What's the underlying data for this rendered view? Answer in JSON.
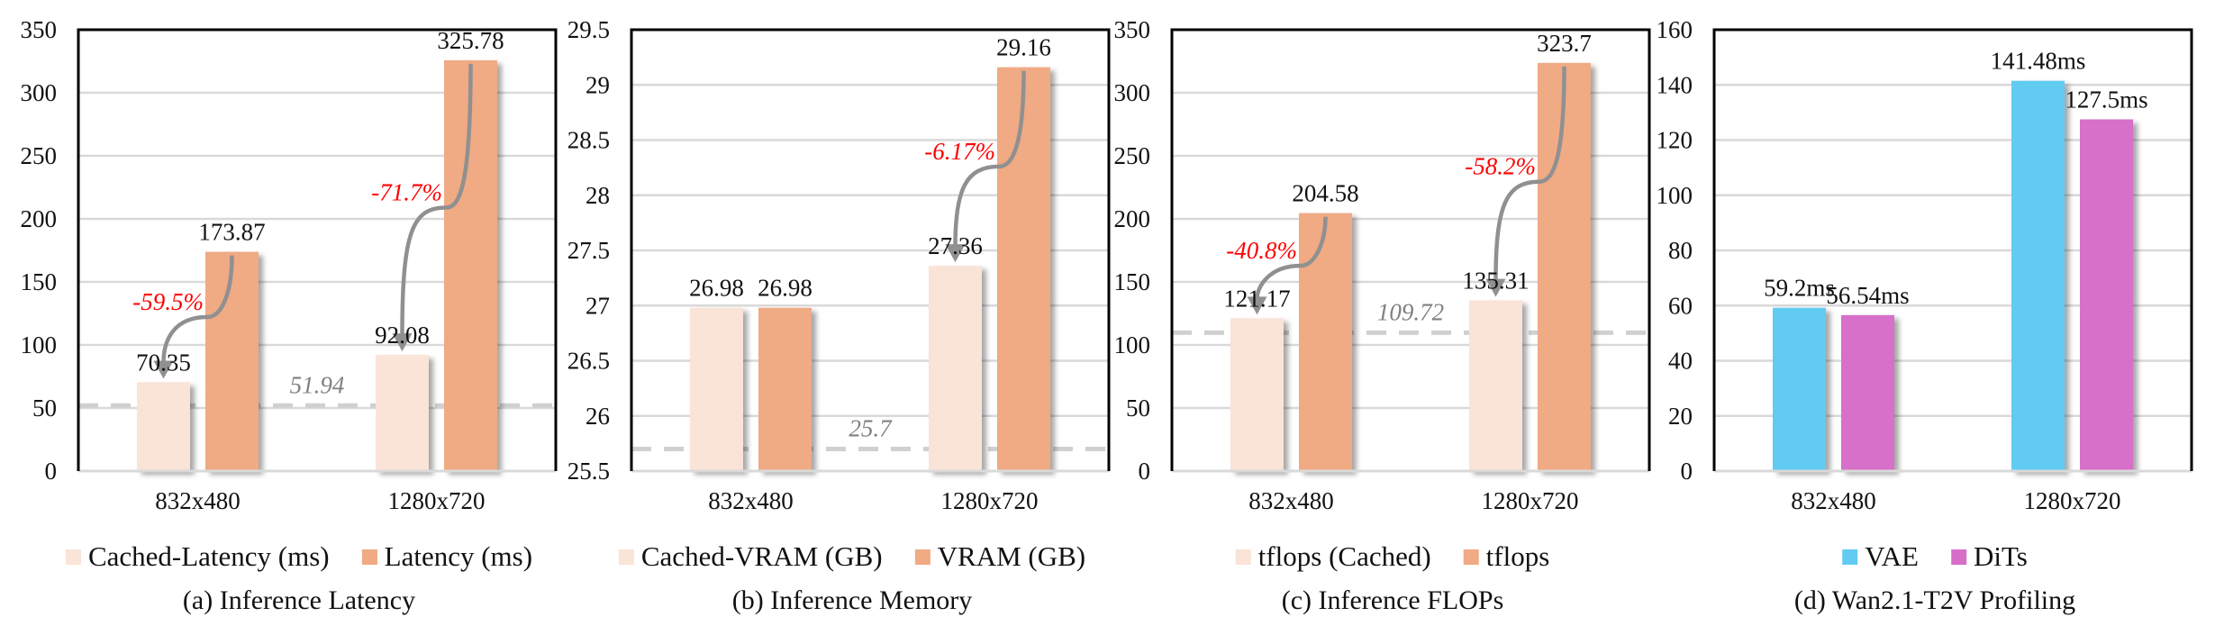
{
  "chart_data": [
    {
      "type": "bar",
      "title": "(a) Inference Latency",
      "categories": [
        "832x480",
        "1280x720"
      ],
      "ylim": [
        0,
        350
      ],
      "ystep": 50,
      "yticks": [
        "0",
        "50",
        "100",
        "150",
        "200",
        "250",
        "300",
        "350"
      ],
      "series": [
        {
          "name": "Cached-Latency (ms)",
          "color": "#FAE3D7",
          "values": [
            70.35,
            92.08
          ],
          "labels": [
            "70.35",
            "92.08"
          ]
        },
        {
          "name": "Latency (ms)",
          "color": "#F0AA84",
          "values": [
            173.87,
            325.78
          ],
          "labels": [
            "173.87",
            "325.78"
          ]
        }
      ],
      "reference_line": {
        "value": 51.94,
        "label": "51.94"
      },
      "annotations": [
        {
          "category": 0,
          "text": "-59.5%"
        },
        {
          "category": 1,
          "text": "-71.7%"
        }
      ],
      "legend": "bottom",
      "grid": true
    },
    {
      "type": "bar",
      "title": "(b) Inference Memory",
      "categories": [
        "832x480",
        "1280x720"
      ],
      "ylim": [
        25.5,
        29.5
      ],
      "ystep": 0.5,
      "yticks": [
        "25.5",
        "26",
        "26.5",
        "27",
        "27.5",
        "28",
        "28.5",
        "29",
        "29.5"
      ],
      "series": [
        {
          "name": "Cached-VRAM (GB)",
          "color": "#FAE3D7",
          "values": [
            26.98,
            27.36
          ],
          "labels": [
            "26.98",
            "27.36"
          ]
        },
        {
          "name": "VRAM (GB)",
          "color": "#F0AA84",
          "values": [
            26.98,
            29.16
          ],
          "labels": [
            "26.98",
            "29.16"
          ]
        }
      ],
      "reference_line": {
        "value": 25.7,
        "label": "25.7"
      },
      "annotations": [
        {
          "category": 1,
          "text": "-6.17%"
        }
      ],
      "legend": "bottom",
      "grid": true
    },
    {
      "type": "bar",
      "title": "(c) Inference FLOPs",
      "categories": [
        "832x480",
        "1280x720"
      ],
      "ylim": [
        0,
        350
      ],
      "ystep": 50,
      "yticks": [
        "0",
        "50",
        "100",
        "150",
        "200",
        "250",
        "300",
        "350"
      ],
      "series": [
        {
          "name": "tflops (Cached)",
          "color": "#FAE3D7",
          "values": [
            121.17,
            135.31
          ],
          "labels": [
            "121.17",
            "135.31"
          ]
        },
        {
          "name": "tflops",
          "color": "#F0AA84",
          "values": [
            204.58,
            323.7
          ],
          "labels": [
            "204.58",
            "323.7"
          ]
        }
      ],
      "reference_line": {
        "value": 109.72,
        "label": "109.72"
      },
      "annotations": [
        {
          "category": 0,
          "text": "-40.8%"
        },
        {
          "category": 1,
          "text": "-58.2%"
        }
      ],
      "legend": "bottom",
      "grid": true
    },
    {
      "type": "bar",
      "title": "(d) Wan2.1-T2V Profiling",
      "categories": [
        "832x480",
        "1280x720"
      ],
      "ylim": [
        0,
        160
      ],
      "ystep": 20,
      "yticks": [
        "0",
        "20",
        "40",
        "60",
        "80",
        "100",
        "120",
        "140",
        "160"
      ],
      "series": [
        {
          "name": "VAE",
          "color": "#62CBF2",
          "values": [
            59.2,
            141.48
          ],
          "labels": [
            "59.2ms",
            "141.48ms"
          ]
        },
        {
          "name": "DiTs",
          "color": "#D76FC8",
          "values": [
            56.54,
            127.5
          ],
          "labels": [
            "56.54ms",
            "127.5ms"
          ]
        }
      ],
      "legend": "bottom",
      "grid": true
    }
  ],
  "colors": {
    "grid": "#D9D9D9",
    "reference": "#D0D0D0",
    "arrow": "#909090",
    "annotation": "#FF0000",
    "ref_label": "#808080"
  }
}
